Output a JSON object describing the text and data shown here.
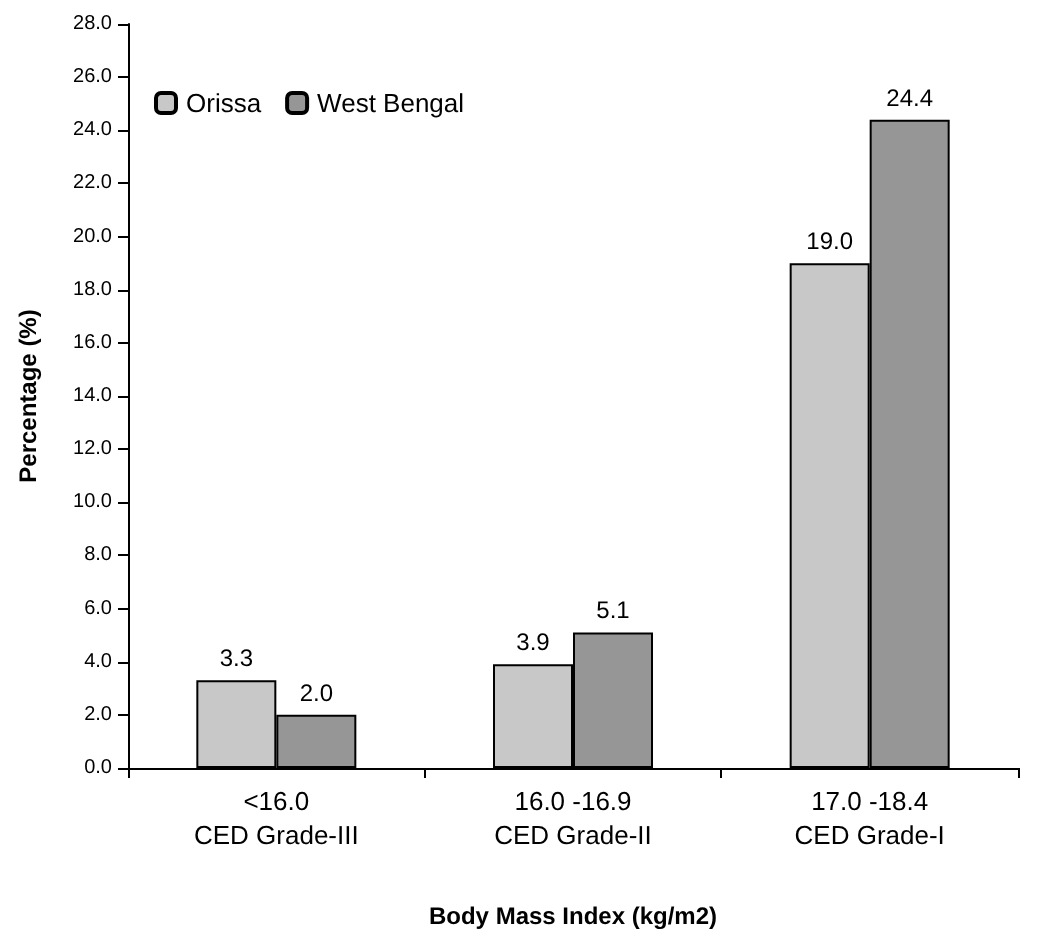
{
  "chart_data": {
    "type": "bar",
    "xlabel": "Body Mass Index (kg/m2)",
    "ylabel": "Percentage (%)",
    "categories": [
      "<16.0\nCED Grade-III",
      "16.0 -16.9\nCED Grade-II",
      "17.0 -18.4\nCED Grade-I"
    ],
    "series": [
      {
        "name": "Orissa",
        "color": "#c8c8c8",
        "values": [
          3.3,
          3.9,
          19.0
        ],
        "value_labels": [
          "3.3",
          "3.9",
          "19.0"
        ]
      },
      {
        "name": "West Bengal",
        "color": "#969696",
        "values": [
          2.0,
          5.1,
          24.4
        ],
        "value_labels": [
          "2.0",
          "5.1",
          "24.4"
        ]
      }
    ],
    "ylim": [
      0,
      28
    ],
    "yticks": [
      {
        "value": 0,
        "label": "0.0"
      },
      {
        "value": 2,
        "label": "2.0"
      },
      {
        "value": 4,
        "label": "4.0"
      },
      {
        "value": 6,
        "label": "6.0"
      },
      {
        "value": 8,
        "label": "8.0"
      },
      {
        "value": 10,
        "label": "10.0"
      },
      {
        "value": 12,
        "label": "12.0"
      },
      {
        "value": 14,
        "label": "14.0"
      },
      {
        "value": 16,
        "label": "16.0"
      },
      {
        "value": 18,
        "label": "18.0"
      },
      {
        "value": 20,
        "label": "20.0"
      },
      {
        "value": 22,
        "label": "22.0"
      },
      {
        "value": 24,
        "label": "24.0"
      },
      {
        "value": 26,
        "label": "26.0"
      },
      {
        "value": 28,
        "label": "28.0"
      }
    ],
    "grid": false,
    "legend": "top left"
  }
}
